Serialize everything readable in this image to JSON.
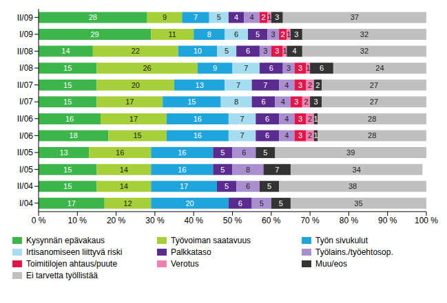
{
  "chart_data": {
    "type": "bar",
    "orientation": "horizontal",
    "stacked": true,
    "data_labels": true,
    "grid": false,
    "legend": "bottom",
    "categories": [
      "II/09",
      "I/09",
      "II/08",
      "I/08",
      "II/07",
      "I/07",
      "II/06",
      "I/06",
      "II/05",
      "I/05",
      "II/04",
      "I/04"
    ],
    "xlim": [
      0,
      100
    ],
    "xticks": [
      {
        "value": 0,
        "label": "0 %"
      },
      {
        "value": 10,
        "label": "10 %"
      },
      {
        "value": 20,
        "label": "20 %"
      },
      {
        "value": 30,
        "label": "30 %"
      },
      {
        "value": 40,
        "label": "40 %"
      },
      {
        "value": 50,
        "label": "50 %"
      },
      {
        "value": 60,
        "label": "60 %"
      },
      {
        "value": 70,
        "label": "70 %"
      },
      {
        "value": 80,
        "label": "80 %"
      },
      {
        "value": 90,
        "label": "90 %"
      },
      {
        "value": 100,
        "label": "100 %"
      }
    ],
    "series": [
      {
        "name": "Kysynnän epävakaus",
        "color": "#3cb54a",
        "values": [
          28,
          29,
          14,
          15,
          15,
          15,
          16,
          18,
          13,
          15,
          15,
          17
        ]
      },
      {
        "name": "Työvoiman saatavuus",
        "color": "#a6cf3a",
        "values": [
          9,
          11,
          22,
          26,
          20,
          17,
          17,
          15,
          16,
          14,
          14,
          12
        ]
      },
      {
        "name": "Työn sivukulut",
        "color": "#1fa5dc",
        "values": [
          7,
          8,
          10,
          9,
          13,
          15,
          16,
          16,
          16,
          16,
          17,
          20
        ]
      },
      {
        "name": "Irtisanomiseen liittyvä riski",
        "color": "#a6dcef",
        "values": [
          5,
          6,
          5,
          7,
          7,
          8,
          7,
          7,
          null,
          null,
          null,
          null
        ]
      },
      {
        "name": "Palkkataso",
        "color": "#5b2c8f",
        "values": [
          4,
          5,
          6,
          6,
          7,
          6,
          6,
          6,
          5,
          5,
          5,
          6
        ]
      },
      {
        "name": "Työlains./työehtosop.",
        "color": "#a98fd0",
        "values": [
          4,
          3,
          3,
          3,
          4,
          4,
          4,
          4,
          6,
          8,
          6,
          5
        ]
      },
      {
        "name": "Toimitilojen ahtaus/puute",
        "color": "#e0174b",
        "values": [
          2,
          2,
          3,
          3,
          3,
          3,
          3,
          3,
          null,
          null,
          null,
          null
        ]
      },
      {
        "name": "Verotus",
        "color": "#f17fb0",
        "values": [
          1,
          1,
          1,
          1,
          2,
          2,
          2,
          2,
          null,
          null,
          null,
          null
        ]
      },
      {
        "name": "Muu/eos",
        "color": "#333333",
        "values": [
          3,
          3,
          4,
          6,
          2,
          3,
          1,
          1,
          5,
          7,
          5,
          5
        ]
      },
      {
        "name": "Ei tarvetta työllistää",
        "color": "#c0c0c0",
        "values": [
          37,
          32,
          32,
          24,
          27,
          27,
          28,
          28,
          39,
          34,
          38,
          35
        ]
      }
    ]
  }
}
